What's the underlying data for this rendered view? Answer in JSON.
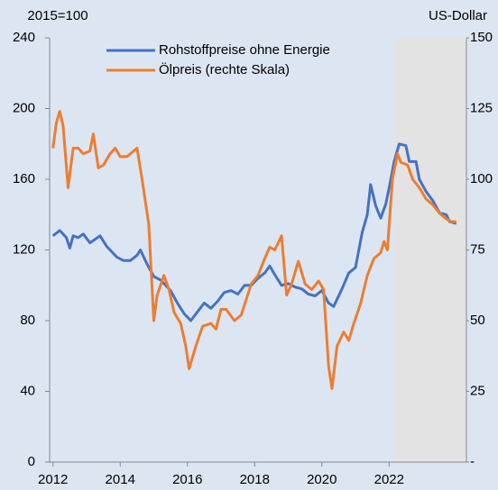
{
  "chart_data": {
    "type": "line",
    "y_label": "2015=100",
    "y2_label": "US-Dollar",
    "series": [
      {
        "name": "Rohstoffpreise ohne Energie",
        "color": "#4472c4",
        "axis": "y",
        "x": [
          2012.0,
          2012.2,
          2012.4,
          2012.5,
          2012.6,
          2012.75,
          2012.9,
          2013.1,
          2013.4,
          2013.6,
          2013.9,
          2014.1,
          2014.3,
          2014.5,
          2014.6,
          2014.8,
          2015.0,
          2015.2,
          2015.5,
          2015.7,
          2015.9,
          2016.1,
          2016.3,
          2016.5,
          2016.7,
          2016.9,
          2017.1,
          2017.3,
          2017.5,
          2017.7,
          2017.9,
          2018.1,
          2018.3,
          2018.45,
          2018.6,
          2018.8,
          2019.0,
          2019.2,
          2019.4,
          2019.6,
          2019.8,
          2020.0,
          2020.2,
          2020.35,
          2020.6,
          2020.8,
          2021.0,
          2021.2,
          2021.35,
          2021.45,
          2021.6,
          2021.75,
          2021.9,
          2022.0,
          2022.15,
          2022.3,
          2022.5,
          2022.6,
          2022.8,
          2022.9,
          2023.1,
          2023.3,
          2023.5,
          2023.7,
          2023.8,
          2024.0
        ],
        "values": [
          128,
          131,
          127,
          121,
          128,
          127,
          129,
          124,
          128,
          122,
          116,
          114,
          114,
          117,
          120,
          112,
          105,
          103,
          97,
          90,
          84,
          80,
          85,
          90,
          87,
          91,
          96,
          97,
          95,
          100,
          100,
          104,
          107,
          111,
          106,
          100,
          101,
          99,
          98,
          95,
          94,
          97,
          90,
          88,
          98,
          107,
          110,
          130,
          140,
          157,
          145,
          138,
          146,
          155,
          170,
          180,
          179,
          170,
          170,
          160,
          153,
          148,
          141,
          140,
          136,
          135
        ]
      },
      {
        "name": "Ölpreis (rechte Skala)",
        "color": "#ed7d31",
        "axis": "y2",
        "x": [
          2012.0,
          2012.1,
          2012.2,
          2012.3,
          2012.45,
          2012.6,
          2012.75,
          2012.9,
          2013.1,
          2013.2,
          2013.35,
          2013.5,
          2013.7,
          2013.85,
          2014.0,
          2014.2,
          2014.5,
          2014.65,
          2014.85,
          2015.0,
          2015.1,
          2015.3,
          2015.45,
          2015.6,
          2015.8,
          2015.95,
          2016.05,
          2016.25,
          2016.45,
          2016.7,
          2016.85,
          2017.0,
          2017.15,
          2017.4,
          2017.6,
          2017.9,
          2018.1,
          2018.3,
          2018.45,
          2018.6,
          2018.8,
          2018.95,
          2019.1,
          2019.3,
          2019.5,
          2019.7,
          2019.9,
          2020.05,
          2020.2,
          2020.3,
          2020.45,
          2020.65,
          2020.8,
          2020.95,
          2021.15,
          2021.35,
          2021.55,
          2021.75,
          2021.85,
          2021.95,
          2022.1,
          2022.25,
          2022.35,
          2022.55,
          2022.7,
          2022.9,
          2023.1,
          2023.3,
          2023.5,
          2023.7,
          2023.85,
          2024.0
        ],
        "values": [
          111,
          120,
          124,
          119,
          97,
          111,
          111,
          109,
          110,
          116,
          104,
          105,
          109,
          111,
          108,
          108,
          111,
          100,
          84,
          50,
          59,
          66,
          61,
          53,
          49,
          41,
          33,
          41,
          48,
          49,
          47,
          54,
          54,
          50,
          52,
          63,
          66,
          72,
          76,
          75,
          80,
          59,
          63,
          71,
          63,
          61,
          64,
          61,
          34,
          26,
          41,
          46,
          43,
          49,
          56,
          66,
          72,
          74,
          78,
          75,
          100,
          109,
          106,
          105,
          100,
          97,
          93,
          91,
          88,
          86,
          85,
          85
        ]
      }
    ],
    "xlim": [
      2011.9,
      2024.3
    ],
    "xticks": [
      2012,
      2014,
      2016,
      2018,
      2020,
      2022
    ],
    "ylim": [
      0,
      240
    ],
    "yticks": [
      0,
      40,
      80,
      120,
      160,
      200,
      240
    ],
    "y2lim": [
      0,
      150
    ],
    "y2ticks": [
      {
        "value": 0,
        "label": "-"
      },
      25,
      50,
      75,
      100,
      125,
      150
    ],
    "shaded_from": 2022.15,
    "legend": "top"
  }
}
